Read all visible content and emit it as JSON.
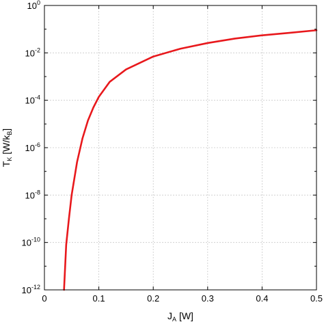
{
  "chart_data": {
    "type": "line",
    "title": "",
    "xlabel": {
      "main": "J",
      "sub": "A",
      "tail": " [W]"
    },
    "ylabel": {
      "main": "T",
      "sub": "K",
      "tail": " [W/k",
      "sub2": "B",
      "end": "]"
    },
    "xlim": [
      0,
      0.5
    ],
    "ylim": [
      1e-12,
      1
    ],
    "yscale": "log",
    "grid": true,
    "x_ticks": [
      "0",
      "0.1",
      "0.2",
      "0.3",
      "0.4",
      "0.5"
    ],
    "y_ticks": [
      {
        "base": "10",
        "exp": "0"
      },
      {
        "base": "10",
        "exp": "-2"
      },
      {
        "base": "10",
        "exp": "-4"
      },
      {
        "base": "10",
        "exp": "-6"
      },
      {
        "base": "10",
        "exp": "-8"
      },
      {
        "base": "10",
        "exp": "-10"
      },
      {
        "base": "10",
        "exp": "-12"
      }
    ],
    "series": [
      {
        "color": "#e8181c",
        "x": [
          0.036,
          0.04,
          0.045,
          0.05,
          0.06,
          0.07,
          0.08,
          0.09,
          0.1,
          0.12,
          0.15,
          0.2,
          0.25,
          0.3,
          0.35,
          0.4,
          0.45,
          0.5
        ],
        "y": [
          1e-12,
          8e-11,
          1e-09,
          1e-08,
          2.5e-07,
          2.5e-06,
          1.4e-05,
          5e-05,
          0.00014,
          0.0006,
          0.002,
          0.007,
          0.015,
          0.026,
          0.04,
          0.055,
          0.07,
          0.09
        ]
      }
    ]
  }
}
